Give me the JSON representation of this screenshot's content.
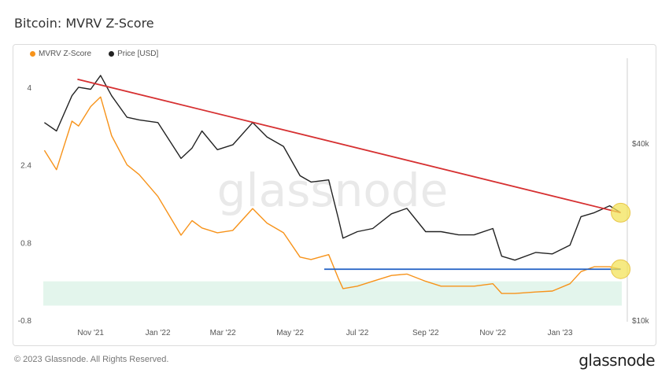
{
  "header": {
    "title": "Bitcoin: MVRV Z-Score"
  },
  "footer": {
    "copyright": "© 2023 Glassnode. All Rights Reserved.",
    "brand": "glassnode"
  },
  "watermark": "glassnode",
  "colors": {
    "zscore": "#f7931a",
    "price": "#222222",
    "trendline": "#d63031",
    "support": "#1f5fc4",
    "green_zone": "#e3f5ec",
    "highlight": "#f3e35a"
  },
  "chart_data": {
    "type": "line",
    "left_axis": {
      "ticks": [
        4,
        2.4,
        0.8,
        -0.8
      ],
      "tick_labels": [
        "4",
        "2.4",
        "0.8",
        "-0.8"
      ],
      "ylim": [
        -0.8,
        4.5
      ]
    },
    "right_axis": {
      "scale": "log",
      "tick_labels": [
        "$40k",
        "$10k"
      ],
      "ticks": [
        40000,
        10000
      ],
      "ylim": [
        10000,
        75000
      ]
    },
    "x_axis": {
      "tick_labels": [
        "Nov '21",
        "Jan '22",
        "Mar '22",
        "May '22",
        "Jul '22",
        "Sep '22",
        "Nov '22",
        "Jan '23"
      ],
      "ticks": [
        "2021-11-01",
        "2022-01-01",
        "2022-03-01",
        "2022-05-01",
        "2022-07-01",
        "2022-09-01",
        "2022-11-01",
        "2023-01-01"
      ],
      "range": [
        "2021-09-19",
        "2023-02-26"
      ]
    },
    "green_zone": {
      "y_from": -0.5,
      "y_to": 0.0
    },
    "series": [
      {
        "name": "MVRV Z-Score",
        "axis": "left",
        "x": [
          "2021-09-20",
          "2021-10-01",
          "2021-10-15",
          "2021-10-21",
          "2021-11-01",
          "2021-11-10",
          "2021-11-20",
          "2021-12-04",
          "2021-12-15",
          "2022-01-01",
          "2022-01-22",
          "2022-02-01",
          "2022-02-10",
          "2022-02-24",
          "2022-03-10",
          "2022-03-28",
          "2022-04-10",
          "2022-04-25",
          "2022-05-10",
          "2022-05-20",
          "2022-06-05",
          "2022-06-14",
          "2022-06-18",
          "2022-07-01",
          "2022-07-15",
          "2022-08-01",
          "2022-08-15",
          "2022-09-01",
          "2022-09-15",
          "2022-10-01",
          "2022-10-15",
          "2022-11-01",
          "2022-11-09",
          "2022-11-21",
          "2022-12-10",
          "2022-12-25",
          "2023-01-10",
          "2023-01-20",
          "2023-02-01",
          "2023-02-15",
          "2023-02-25"
        ],
        "values": [
          2.7,
          2.3,
          3.3,
          3.2,
          3.6,
          3.8,
          3.0,
          2.4,
          2.2,
          1.75,
          0.95,
          1.25,
          1.1,
          1.0,
          1.05,
          1.5,
          1.2,
          1.0,
          0.5,
          0.45,
          0.55,
          0.05,
          -0.15,
          -0.1,
          0.0,
          0.12,
          0.15,
          0.0,
          -0.1,
          -0.1,
          -0.1,
          -0.05,
          -0.25,
          -0.25,
          -0.22,
          -0.2,
          -0.05,
          0.2,
          0.3,
          0.3,
          0.25
        ]
      },
      {
        "name": "Price [USD]",
        "axis": "right",
        "x": [
          "2021-09-20",
          "2021-10-01",
          "2021-10-15",
          "2021-10-21",
          "2021-11-01",
          "2021-11-10",
          "2021-11-20",
          "2021-12-04",
          "2021-12-15",
          "2022-01-01",
          "2022-01-22",
          "2022-02-01",
          "2022-02-10",
          "2022-02-24",
          "2022-03-10",
          "2022-03-28",
          "2022-04-10",
          "2022-04-25",
          "2022-05-10",
          "2022-05-20",
          "2022-06-05",
          "2022-06-14",
          "2022-06-18",
          "2022-07-01",
          "2022-07-15",
          "2022-08-01",
          "2022-08-15",
          "2022-09-01",
          "2022-09-15",
          "2022-10-01",
          "2022-10-15",
          "2022-11-01",
          "2022-11-09",
          "2022-11-21",
          "2022-12-10",
          "2022-12-25",
          "2023-01-10",
          "2023-01-20",
          "2023-02-01",
          "2023-02-15",
          "2023-02-25"
        ],
        "values": [
          47000,
          44000,
          58000,
          62000,
          61000,
          68000,
          58000,
          49000,
          48000,
          47000,
          35500,
          38500,
          44000,
          38000,
          39500,
          47000,
          42000,
          39000,
          31000,
          29500,
          30000,
          22000,
          19000,
          20000,
          20500,
          23000,
          24000,
          20000,
          20000,
          19500,
          19500,
          20500,
          16500,
          16000,
          17000,
          16800,
          18000,
          22500,
          23200,
          24500,
          23200
        ]
      }
    ],
    "trendline": {
      "x": [
        "2021-10-20",
        "2023-02-25"
      ],
      "y_usd": [
        66000,
        23200
      ]
    },
    "support_line": {
      "x": [
        "2022-06-01",
        "2023-02-25"
      ],
      "y_z": [
        0.25,
        0.25
      ]
    },
    "highlights": [
      {
        "x": "2023-02-25",
        "y_usd": 23200
      },
      {
        "x": "2023-02-25",
        "y_z": 0.25
      }
    ]
  }
}
